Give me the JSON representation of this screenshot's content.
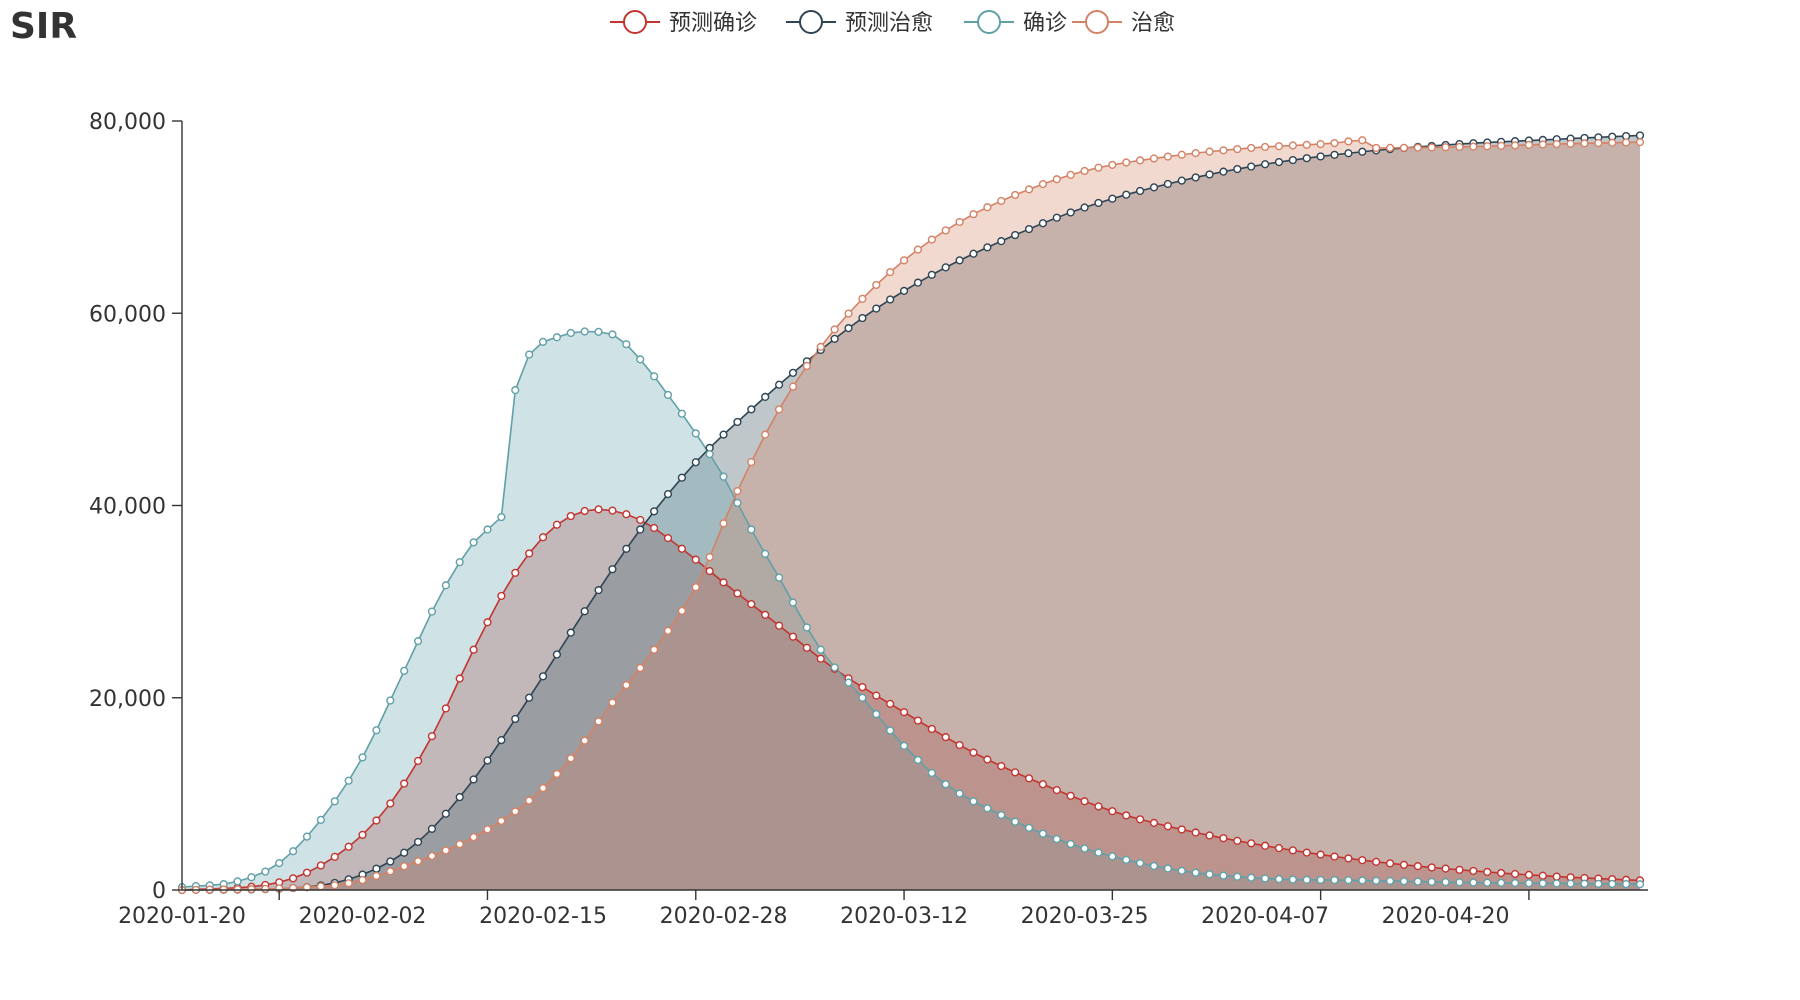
{
  "chart_data": {
    "type": "area",
    "title": "SIR",
    "xlabel": "",
    "ylabel": "",
    "ylim": [
      0,
      80000
    ],
    "y_ticks": [
      0,
      20000,
      40000,
      60000,
      80000
    ],
    "y_tick_labels": [
      "0",
      "20,000",
      "40,000",
      "60,000",
      "80,000"
    ],
    "x_start": "2020-01-20",
    "x_end": "2020-05-04",
    "x_ticks": [
      "2020-01-20",
      "2020-02-02",
      "2020-02-15",
      "2020-02-28",
      "2020-03-12",
      "2020-03-25",
      "2020-04-07",
      "2020-04-20"
    ],
    "legend_position": "top-center",
    "grid": false,
    "series": [
      {
        "name": "预测确诊",
        "color": "#c23531",
        "keypoints": [
          [
            "2020-01-20",
            0
          ],
          [
            "2020-01-27",
            800
          ],
          [
            "2020-02-01",
            4500
          ],
          [
            "2020-02-04",
            9000
          ],
          [
            "2020-02-07",
            16000
          ],
          [
            "2020-02-10",
            25000
          ],
          [
            "2020-02-13",
            33000
          ],
          [
            "2020-02-16",
            38000
          ],
          [
            "2020-02-19",
            39600
          ],
          [
            "2020-02-22",
            38500
          ],
          [
            "2020-02-25",
            35500
          ],
          [
            "2020-02-28",
            32000
          ],
          [
            "2020-03-03",
            27500
          ],
          [
            "2020-03-07",
            23000
          ],
          [
            "2020-03-12",
            18500
          ],
          [
            "2020-03-17",
            14300
          ],
          [
            "2020-03-22",
            11000
          ],
          [
            "2020-03-27",
            8200
          ],
          [
            "2020-04-01",
            6300
          ],
          [
            "2020-04-07",
            4600
          ],
          [
            "2020-04-14",
            3100
          ],
          [
            "2020-04-21",
            2100
          ],
          [
            "2020-04-28",
            1400
          ],
          [
            "2020-05-04",
            1000
          ]
        ]
      },
      {
        "name": "预测治愈",
        "color": "#2f4554",
        "keypoints": [
          [
            "2020-01-20",
            0
          ],
          [
            "2020-01-28",
            200
          ],
          [
            "2020-02-02",
            1600
          ],
          [
            "2020-02-06",
            5000
          ],
          [
            "2020-02-10",
            11500
          ],
          [
            "2020-02-14",
            20000
          ],
          [
            "2020-02-18",
            29000
          ],
          [
            "2020-02-22",
            37500
          ],
          [
            "2020-02-26",
            44500
          ],
          [
            "2020-03-01",
            50000
          ],
          [
            "2020-03-05",
            55000
          ],
          [
            "2020-03-09",
            59500
          ],
          [
            "2020-03-14",
            64000
          ],
          [
            "2020-03-19",
            67500
          ],
          [
            "2020-03-25",
            71000
          ],
          [
            "2020-04-01",
            73800
          ],
          [
            "2020-04-07",
            75500
          ],
          [
            "2020-04-14",
            76800
          ],
          [
            "2020-04-21",
            77600
          ],
          [
            "2020-04-28",
            78100
          ],
          [
            "2020-05-04",
            78500
          ]
        ]
      },
      {
        "name": "确诊",
        "color": "#61a0a8",
        "keypoints": [
          [
            "2020-01-20",
            300
          ],
          [
            "2020-01-24",
            900
          ],
          [
            "2020-01-27",
            2800
          ],
          [
            "2020-01-30",
            7300
          ],
          [
            "2020-02-02",
            13800
          ],
          [
            "2020-02-05",
            22800
          ],
          [
            "2020-02-08",
            31700
          ],
          [
            "2020-02-11",
            37500
          ],
          [
            "2020-02-12",
            38800
          ],
          [
            "2020-02-13",
            52000
          ],
          [
            "2020-02-14",
            55700
          ],
          [
            "2020-02-16",
            57500
          ],
          [
            "2020-02-18",
            58100
          ],
          [
            "2020-02-20",
            57800
          ],
          [
            "2020-02-22",
            55200
          ],
          [
            "2020-02-24",
            51500
          ],
          [
            "2020-02-26",
            47500
          ],
          [
            "2020-02-28",
            43000
          ],
          [
            "2020-03-01",
            37500
          ],
          [
            "2020-03-03",
            32500
          ],
          [
            "2020-03-06",
            25000
          ],
          [
            "2020-03-09",
            20000
          ],
          [
            "2020-03-12",
            15000
          ],
          [
            "2020-03-15",
            11000
          ],
          [
            "2020-03-19",
            7800
          ],
          [
            "2020-03-23",
            5300
          ],
          [
            "2020-03-27",
            3500
          ],
          [
            "2020-04-01",
            2000
          ],
          [
            "2020-04-07",
            1200
          ],
          [
            "2020-04-14",
            1000
          ],
          [
            "2020-04-21",
            800
          ],
          [
            "2020-05-04",
            600
          ]
        ]
      },
      {
        "name": "治愈",
        "color": "#d48265",
        "keypoints": [
          [
            "2020-01-20",
            0
          ],
          [
            "2020-01-31",
            500
          ],
          [
            "2020-02-06",
            3000
          ],
          [
            "2020-02-10",
            5500
          ],
          [
            "2020-02-14",
            9300
          ],
          [
            "2020-02-17",
            13700
          ],
          [
            "2020-02-20",
            19500
          ],
          [
            "2020-02-23",
            25000
          ],
          [
            "2020-02-26",
            31500
          ],
          [
            "2020-02-29",
            41500
          ],
          [
            "2020-03-03",
            50000
          ],
          [
            "2020-03-06",
            56500
          ],
          [
            "2020-03-09",
            61500
          ],
          [
            "2020-03-12",
            65500
          ],
          [
            "2020-03-16",
            69500
          ],
          [
            "2020-03-20",
            72300
          ],
          [
            "2020-03-25",
            74800
          ],
          [
            "2020-03-31",
            76300
          ],
          [
            "2020-04-06",
            77200
          ],
          [
            "2020-04-12",
            77700
          ],
          [
            "2020-04-14",
            78000
          ],
          [
            "2020-04-15",
            77200
          ],
          [
            "2020-04-21",
            77300
          ],
          [
            "2020-04-28",
            77600
          ],
          [
            "2020-05-04",
            77800
          ]
        ]
      }
    ]
  }
}
